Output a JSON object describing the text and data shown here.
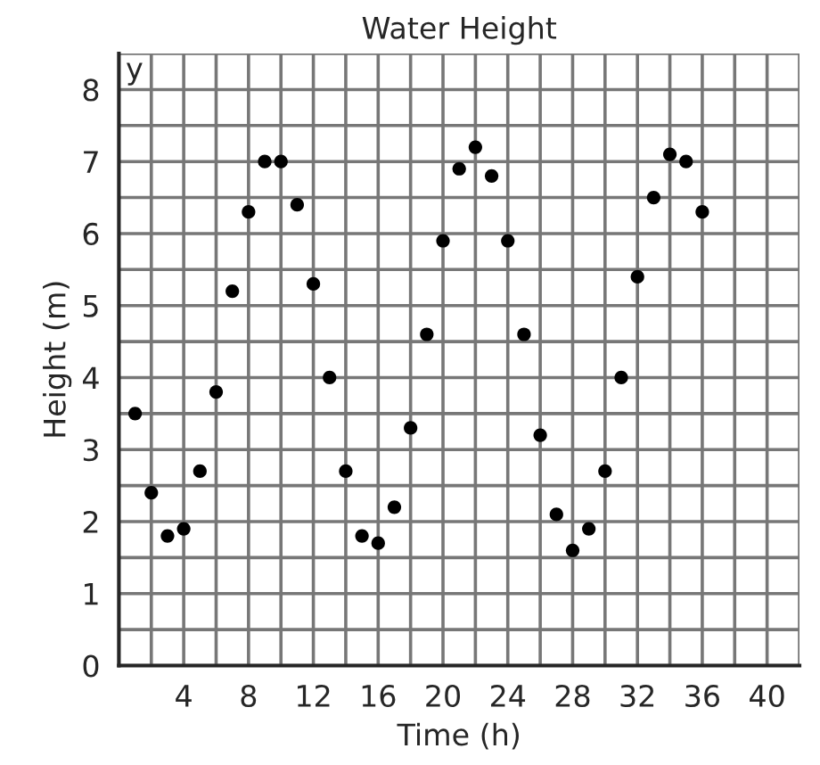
{
  "chart_data": {
    "type": "scatter",
    "title": "Water Height",
    "xlabel": "Time (h)",
    "ylabel": "Height (m)",
    "x": [
      1,
      2,
      3,
      4,
      5,
      6,
      7,
      8,
      9,
      10,
      11,
      12,
      13,
      14,
      15,
      16,
      17,
      18,
      19,
      20,
      21,
      22,
      23,
      24,
      25,
      26,
      27,
      28,
      29,
      30,
      31,
      32,
      33,
      34,
      35,
      36
    ],
    "series": [
      {
        "color": "#000000",
        "values": [
          3.5,
          2.4,
          1.8,
          1.9,
          2.7,
          3.8,
          5.2,
          6.3,
          7.0,
          7.0,
          6.4,
          5.3,
          4.0,
          2.7,
          1.8,
          1.7,
          2.2,
          3.3,
          4.6,
          5.9,
          6.9,
          7.2,
          6.8,
          5.9,
          4.6,
          3.2,
          2.1,
          1.6,
          1.9,
          2.7,
          4.0,
          5.4,
          6.5,
          7.1,
          7.0,
          6.3
        ]
      }
    ],
    "xlim": [
      0,
      42
    ],
    "ylim": [
      0,
      8.5
    ],
    "xticks": [
      {
        "value": 2,
        "label": null
      },
      4,
      {
        "value": 6,
        "label": null
      },
      8,
      {
        "value": 10,
        "label": null
      },
      12,
      {
        "value": 14,
        "label": null
      },
      16,
      {
        "value": 18,
        "label": null
      },
      20,
      {
        "value": 22,
        "label": null
      },
      24,
      {
        "value": 26,
        "label": null
      },
      28,
      {
        "value": 30,
        "label": null
      },
      32,
      {
        "value": 34,
        "label": null
      },
      36,
      {
        "value": 38,
        "label": null
      },
      40,
      {
        "value": 42,
        "label": null
      }
    ],
    "yticks": [
      0,
      {
        "value": 0.5,
        "label": null
      },
      1,
      {
        "value": 1.5,
        "label": null
      },
      2,
      {
        "value": 2.5,
        "label": null
      },
      3,
      {
        "value": 3.5,
        "label": null
      },
      4,
      {
        "value": 4.5,
        "label": null
      },
      5,
      {
        "value": 5.5,
        "label": null
      },
      6,
      {
        "value": 6.5,
        "label": null
      },
      7,
      {
        "value": 7.5,
        "label": null
      },
      8,
      {
        "value": 8.5,
        "label": null
      }
    ],
    "annotations": [
      "y"
    ],
    "grid": true,
    "marker": "circle"
  }
}
